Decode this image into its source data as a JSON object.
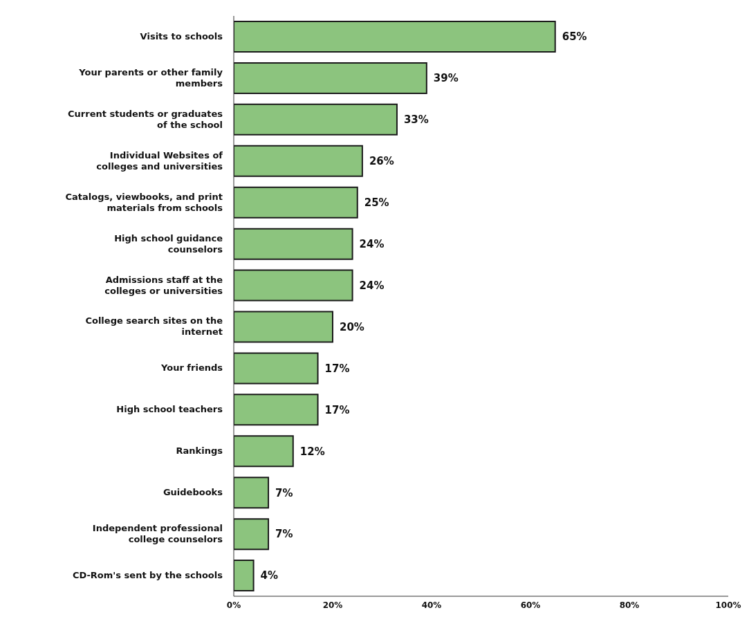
{
  "chart_data": {
    "type": "bar",
    "orientation": "horizontal",
    "categories": [
      "Visits to schools",
      "Your parents or other family members",
      "Current students or graduates of the school",
      "Individual Websites of colleges and universities",
      "Catalogs, viewbooks, and print materials from schools",
      "High school guidance counselors",
      "Admissions staff at the colleges or universities",
      "College search sites on the internet",
      "Your friends",
      "High school teachers",
      "Rankings",
      "Guidebooks",
      "Independent professional college counselors",
      "CD-Rom's sent by the schools"
    ],
    "values": [
      65,
      39,
      33,
      26,
      25,
      24,
      24,
      20,
      17,
      17,
      12,
      7,
      7,
      4
    ],
    "value_labels": [
      "65%",
      "39%",
      "33%",
      "26%",
      "25%",
      "24%",
      "24%",
      "20%",
      "17%",
      "17%",
      "12%",
      "7%",
      "7%",
      "4%"
    ],
    "color": "#8cc47e",
    "xlim": [
      0,
      100
    ],
    "xticks": [
      {
        "value": 0,
        "label": "0%"
      },
      {
        "value": 20,
        "label": "20%"
      },
      {
        "value": 40,
        "label": "40%"
      },
      {
        "value": 60,
        "label": "60%"
      },
      {
        "value": 80,
        "label": "80%"
      },
      {
        "value": 100,
        "label": "100%"
      }
    ],
    "grid": false
  }
}
